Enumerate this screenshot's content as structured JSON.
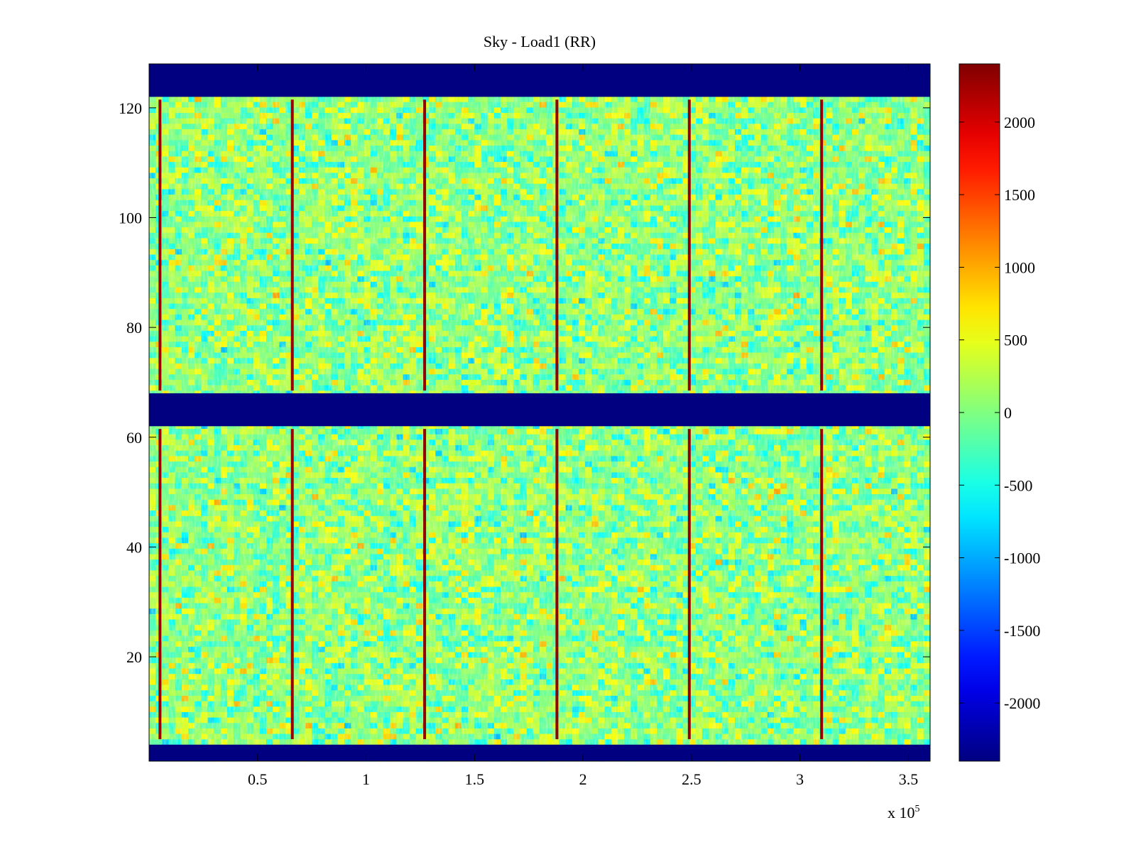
{
  "chart_data": {
    "type": "heatmap",
    "title": "Sky - Load1 (RR)",
    "xlabel": "",
    "ylabel": "",
    "x_exponent_label": "x 10",
    "x_exponent_power": "5",
    "xlim": [
      0,
      3.6
    ],
    "ylim": [
      1,
      128
    ],
    "x_ticks": [
      0.5,
      1,
      1.5,
      2,
      2.5,
      3,
      3.5
    ],
    "x_tick_labels": [
      "0.5",
      "1",
      "1.5",
      "2",
      "2.5",
      "3",
      "3.5"
    ],
    "y_ticks": [
      20,
      40,
      60,
      80,
      100,
      120
    ],
    "y_tick_labels": [
      "20",
      "40",
      "60",
      "80",
      "100",
      "120"
    ],
    "color_limits": [
      -2400,
      2400
    ],
    "colorbar_ticks": [
      2000,
      1500,
      1000,
      500,
      0,
      -500,
      -1000,
      -1500,
      -2000
    ],
    "colorbar_tick_labels": [
      "2000",
      "1500",
      "1000",
      "500",
      "0",
      "-500",
      "-1000",
      "-1500",
      "-2000"
    ],
    "colormap": "jet",
    "background_value": 50,
    "masked_value": -2400,
    "masked_row_bands": [
      {
        "from": 1,
        "to": 4
      },
      {
        "from": 62,
        "to": 68
      },
      {
        "from": 122,
        "to": 128
      }
    ],
    "spike_columns_x": [
      0.05,
      0.66,
      1.27,
      1.88,
      2.49,
      3.1
    ],
    "spike_value": 2300,
    "colors": {
      "masked": "#00008f",
      "background": "#80ff80",
      "spike": "#8f0000"
    }
  }
}
